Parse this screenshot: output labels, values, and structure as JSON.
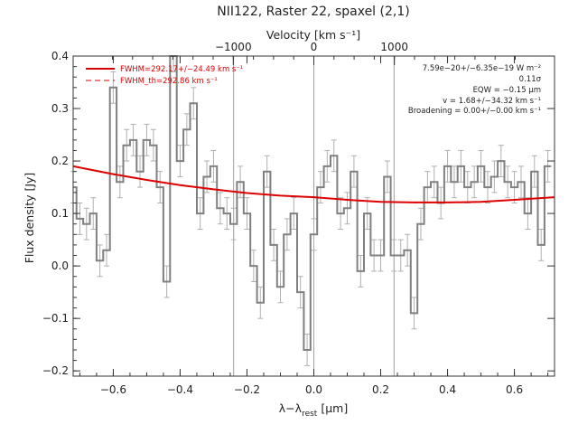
{
  "chart_data": {
    "type": "line",
    "title": "NII122, Raster 22, spaxel (2,1)",
    "xlabel": "λ−λ",
    "xlabel_sub": "rest",
    "xlabel_unit": " [μm]",
    "ylabel": "Flux density [Jy]",
    "top_axis_label": "Velocity [km s⁻¹]",
    "xlim": [
      -0.72,
      0.72
    ],
    "ylim": [
      -0.21,
      0.4
    ],
    "x_ticks": [
      -0.6,
      -0.4,
      -0.2,
      0.0,
      0.2,
      0.4,
      0.6
    ],
    "x_tick_labels": [
      "−0.6",
      "−0.4",
      "−0.2",
      "0.0",
      "0.2",
      "0.4",
      "0.6"
    ],
    "y_ticks": [
      -0.2,
      -0.1,
      0.0,
      0.1,
      0.2,
      0.3,
      0.4
    ],
    "y_tick_labels": [
      "−0.2",
      "−0.1",
      "0.0",
      "0.1",
      "0.2",
      "0.3",
      "0.4"
    ],
    "top_ticks": [
      -1000,
      0,
      1000
    ],
    "top_tick_labels": [
      "−1000",
      "0",
      "1000"
    ],
    "top_axis_factor": 0.000241,
    "vertical_lines": [
      -0.24,
      0.0,
      0.24
    ],
    "legend": [
      {
        "label": "FWHM=292.17+/−24.49 km s⁻¹",
        "style": "solid"
      },
      {
        "label": "FWHM_th=292.86 km s⁻¹",
        "style": "dashed"
      }
    ],
    "annotations": [
      "7.59e−20+/−6.35e−19 W m⁻²",
      "0.11σ",
      "EQW = −0.15 μm",
      "v = 1.68+/−34.32 km s⁻¹",
      "Broadening = 0.00+/−0.00 km s⁻¹"
    ],
    "colors": {
      "data": "#808080",
      "error": "#b0b0b0",
      "fit": "#dd0000",
      "vline": "#a0a0a0"
    },
    "series": [
      {
        "style": "histogram",
        "x": [
          -0.72,
          -0.7,
          -0.68,
          -0.66,
          -0.64,
          -0.62,
          -0.6,
          -0.58,
          -0.56,
          -0.54,
          -0.52,
          -0.5,
          -0.48,
          -0.46,
          -0.44,
          -0.42,
          -0.4,
          -0.38,
          -0.36,
          -0.34,
          -0.32,
          -0.3,
          -0.28,
          -0.26,
          -0.24,
          -0.22,
          -0.2,
          -0.18,
          -0.16,
          -0.14,
          -0.12,
          -0.1,
          -0.08,
          -0.06,
          -0.04,
          -0.02,
          0.0,
          0.02,
          0.04,
          0.06,
          0.08,
          0.1,
          0.12,
          0.14,
          0.16,
          0.18,
          0.2,
          0.22,
          0.24,
          0.26,
          0.28,
          0.3,
          0.32,
          0.34,
          0.36,
          0.38,
          0.4,
          0.42,
          0.44,
          0.46,
          0.48,
          0.5,
          0.52,
          0.54,
          0.56,
          0.58,
          0.6,
          0.62,
          0.64,
          0.66,
          0.68,
          0.7
        ],
        "y": [
          0.15,
          0.09,
          0.08,
          0.1,
          0.01,
          0.03,
          0.34,
          0.16,
          0.23,
          0.24,
          0.18,
          0.24,
          0.23,
          0.15,
          -0.03,
          0.4,
          0.2,
          0.26,
          0.31,
          0.1,
          0.17,
          0.19,
          0.11,
          0.1,
          0.08,
          0.16,
          0.1,
          0.0,
          -0.07,
          0.18,
          0.04,
          -0.04,
          0.06,
          0.1,
          -0.05,
          -0.16,
          0.06,
          0.15,
          0.19,
          0.21,
          0.1,
          0.11,
          0.18,
          -0.01,
          0.1,
          0.02,
          0.02,
          0.17,
          0.02,
          0.02,
          0.03,
          -0.09,
          0.08,
          0.15,
          0.16,
          0.12,
          0.19,
          0.16,
          0.19,
          0.15,
          0.16,
          0.19,
          0.15,
          0.17,
          0.2,
          0.16,
          0.15,
          0.16,
          0.1,
          0.18,
          0.04,
          0.19
        ],
        "yerr": 0.03
      },
      {
        "style": "line",
        "x": [
          -0.72,
          -0.6,
          -0.5,
          -0.4,
          -0.3,
          -0.2,
          -0.1,
          0.0,
          0.1,
          0.2,
          0.3,
          0.4,
          0.5,
          0.6,
          0.72
        ],
        "y": [
          0.19,
          0.175,
          0.164,
          0.154,
          0.146,
          0.139,
          0.134,
          0.131,
          0.126,
          0.122,
          0.121,
          0.121,
          0.122,
          0.126,
          0.131
        ]
      }
    ]
  }
}
